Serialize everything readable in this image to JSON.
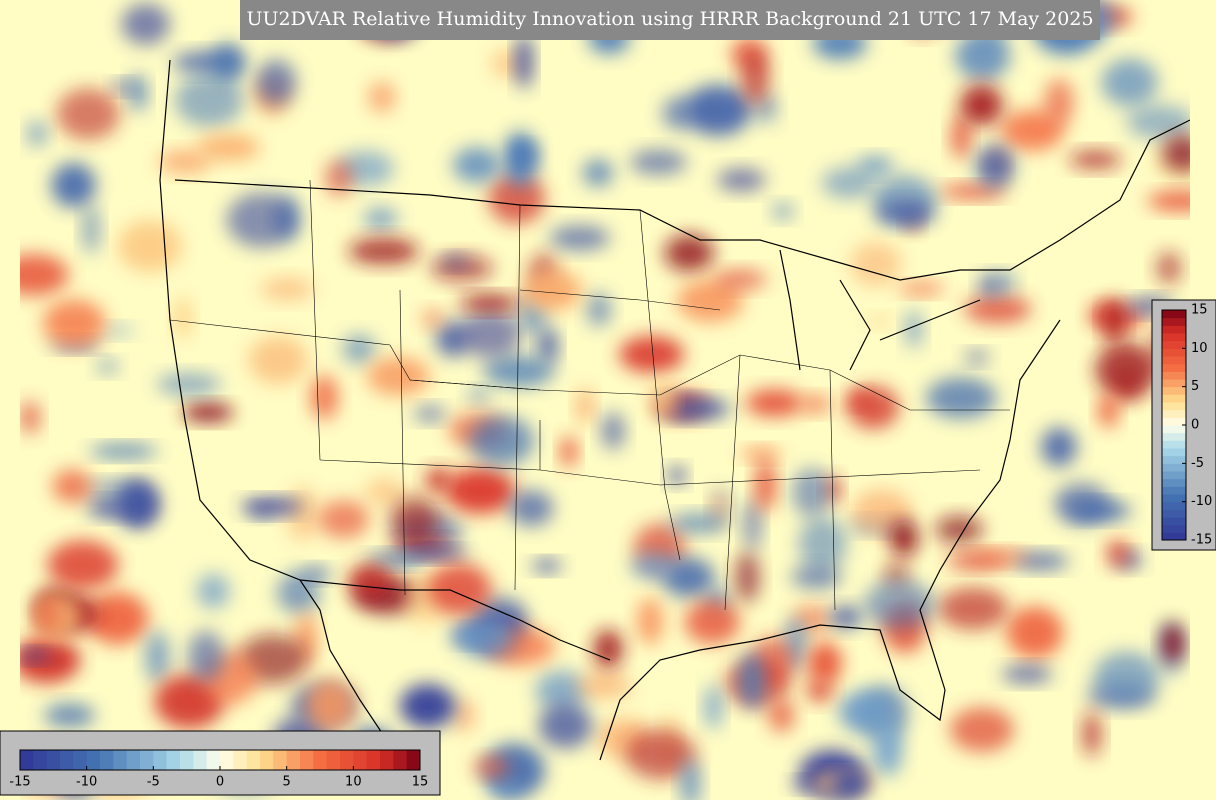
{
  "title": "UU2DVAR Relative Humidity Innovation using HRRR Background 21 UTC 17 May 2025",
  "colorbar_horizontal": {
    "range": [
      -15,
      15
    ],
    "ticks": [
      -15,
      -10,
      -5,
      0,
      5,
      10,
      15
    ]
  },
  "colorbar_vertical": {
    "range": [
      -15,
      15
    ],
    "ticks": [
      15,
      10,
      5,
      0,
      -5,
      -10,
      -15
    ]
  }
}
